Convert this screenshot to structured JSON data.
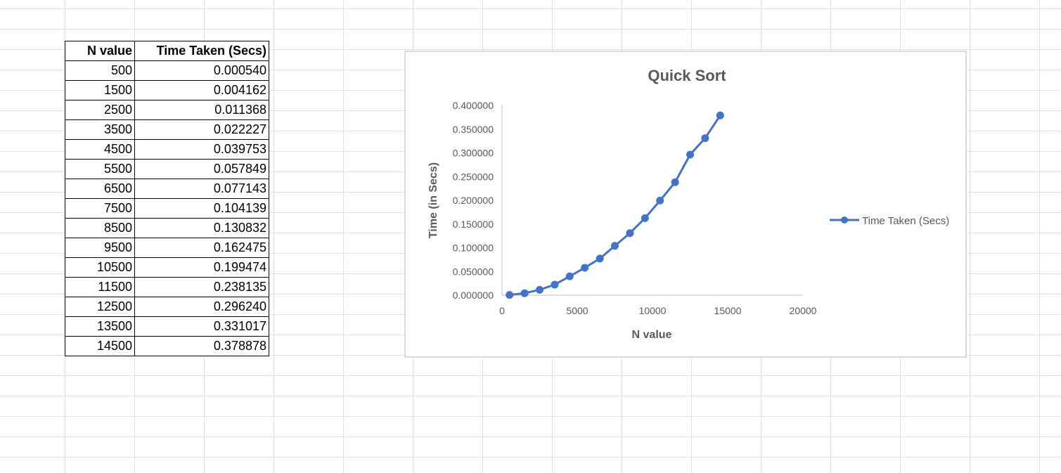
{
  "table": {
    "headers": [
      "N value",
      "Time Taken (Secs)"
    ],
    "rows": [
      [
        "500",
        "0.000540"
      ],
      [
        "1500",
        "0.004162"
      ],
      [
        "2500",
        "0.011368"
      ],
      [
        "3500",
        "0.022227"
      ],
      [
        "4500",
        "0.039753"
      ],
      [
        "5500",
        "0.057849"
      ],
      [
        "6500",
        "0.077143"
      ],
      [
        "7500",
        "0.104139"
      ],
      [
        "8500",
        "0.130832"
      ],
      [
        "9500",
        "0.162475"
      ],
      [
        "10500",
        "0.199474"
      ],
      [
        "11500",
        "0.238135"
      ],
      [
        "12500",
        "0.296240"
      ],
      [
        "13500",
        "0.331017"
      ],
      [
        "14500",
        "0.378878"
      ]
    ]
  },
  "chart_data": {
    "type": "line",
    "title": "Quick Sort",
    "xlabel": "N value",
    "ylabel": "Time (in Secs)",
    "xlim": [
      0,
      20000
    ],
    "ylim": [
      0,
      0.4
    ],
    "x_ticks": [
      "0",
      "5000",
      "10000",
      "15000",
      "20000"
    ],
    "y_ticks": [
      "0.000000",
      "0.050000",
      "0.100000",
      "0.150000",
      "0.200000",
      "0.250000",
      "0.300000",
      "0.350000",
      "0.400000"
    ],
    "grid": false,
    "legend": "right",
    "series": [
      {
        "name": "Time Taken (Secs)",
        "color": "#4472c4",
        "x": [
          500,
          1500,
          2500,
          3500,
          4500,
          5500,
          6500,
          7500,
          8500,
          9500,
          10500,
          11500,
          12500,
          13500,
          14500
        ],
        "y": [
          0.00054,
          0.004162,
          0.011368,
          0.022227,
          0.039753,
          0.057849,
          0.077143,
          0.104139,
          0.130832,
          0.162475,
          0.199474,
          0.238135,
          0.29624,
          0.331017,
          0.378878
        ]
      }
    ]
  }
}
